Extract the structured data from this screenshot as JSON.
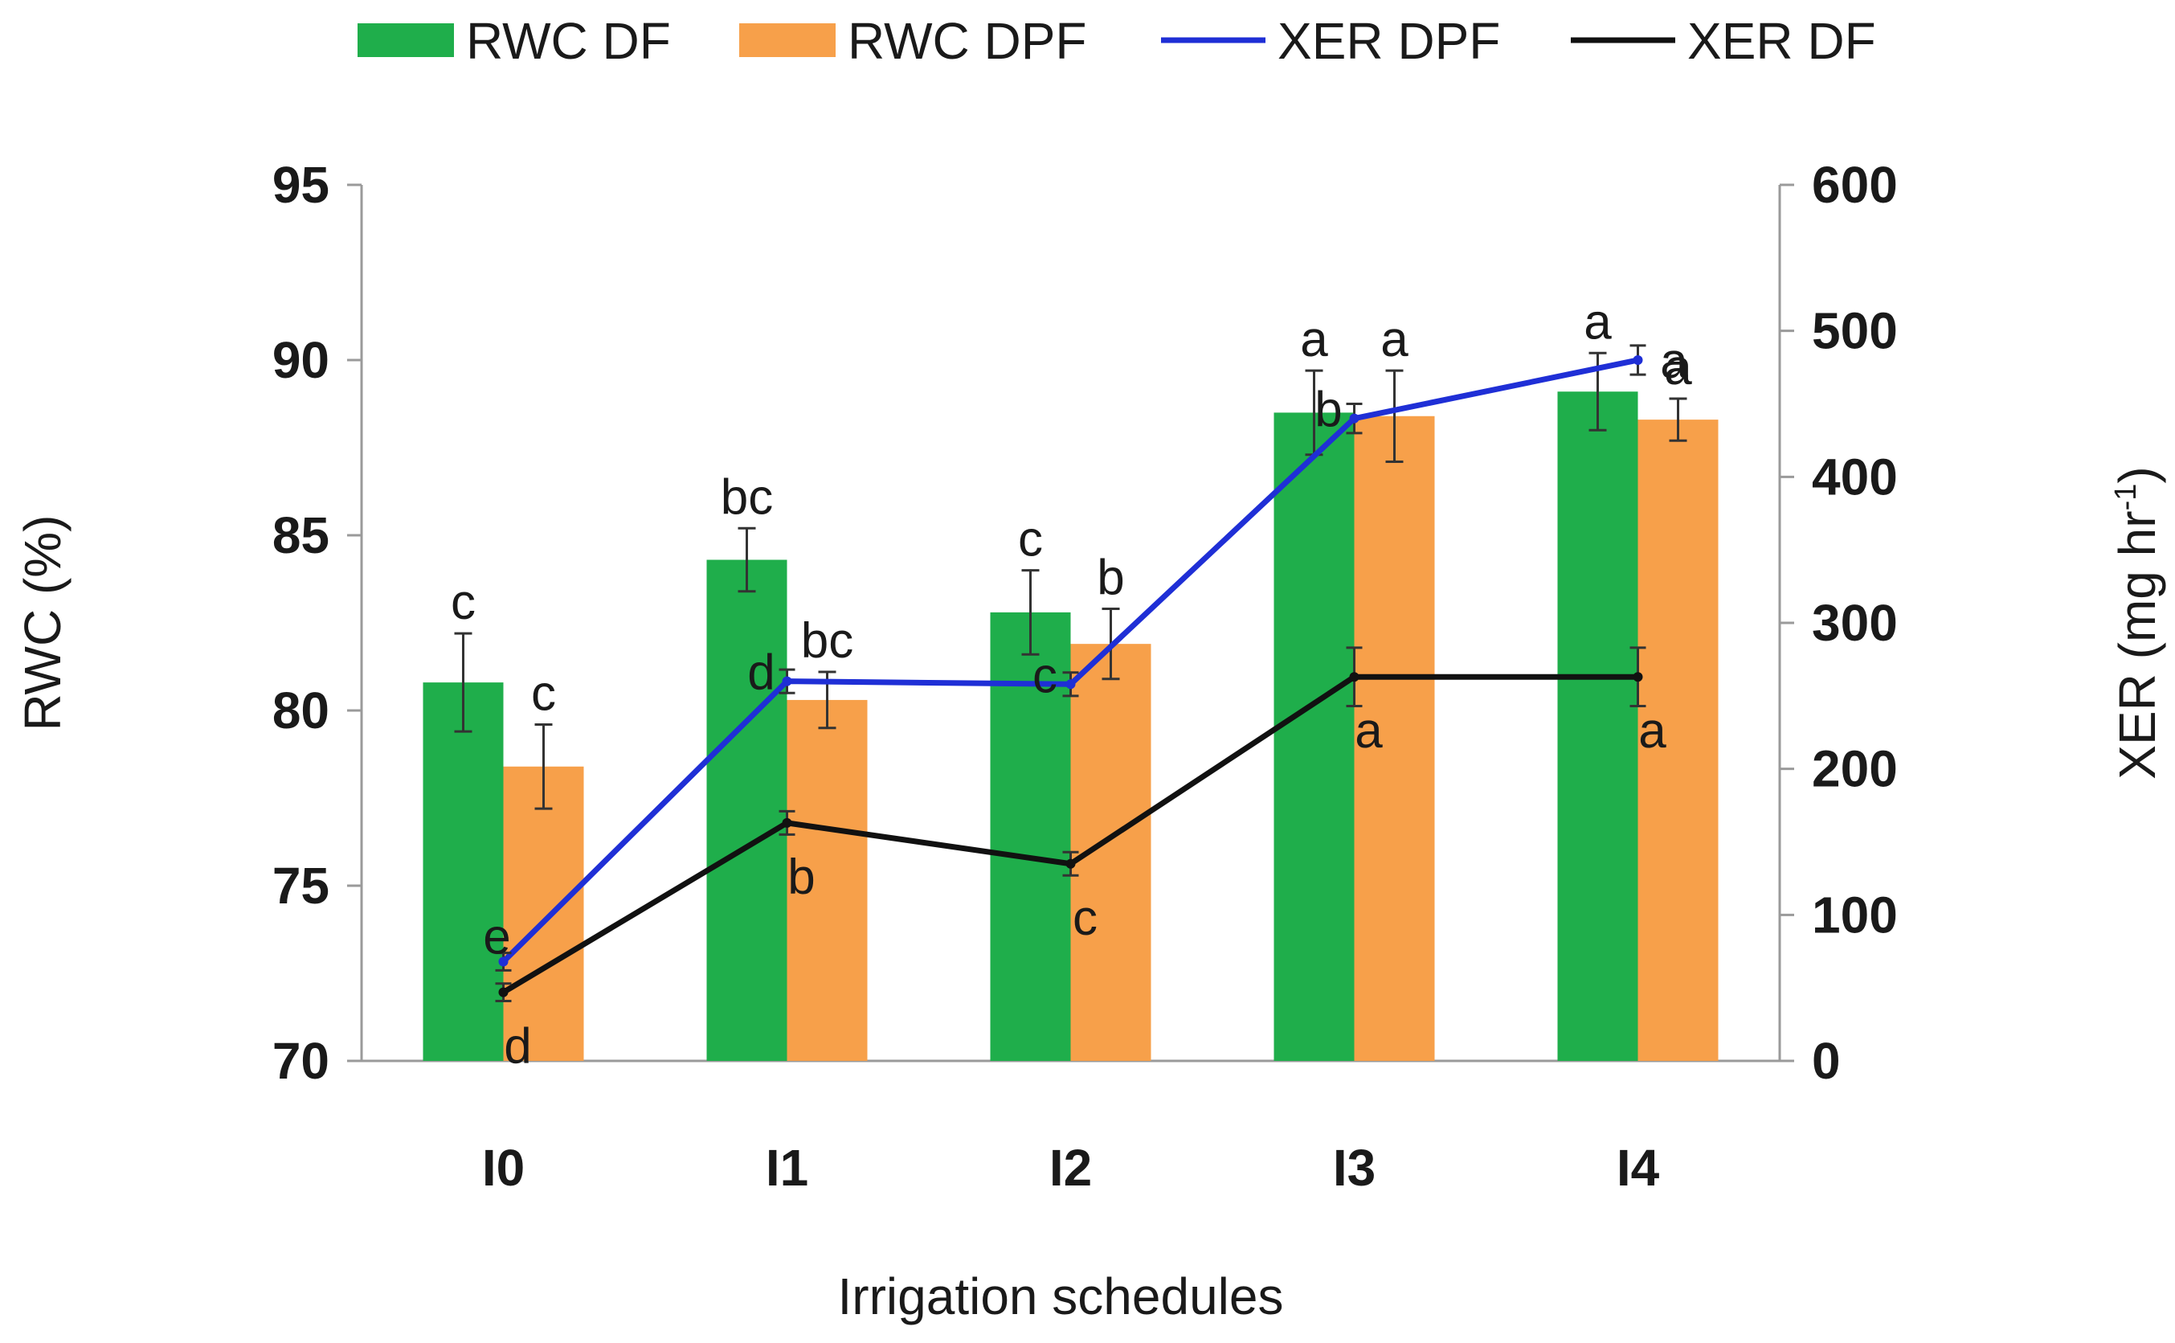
{
  "chart_data": {
    "type": "bar",
    "title": "",
    "xlabel": "Irrigation schedules",
    "ylabel": "RWC (%)",
    "y2label": "XER (mg hr",
    "y2label_sup": "-1",
    "y2label_close": ")",
    "categories": [
      "I0",
      "I1",
      "I2",
      "I3",
      "I4"
    ],
    "ylim": [
      70,
      95
    ],
    "yticks": [
      "70",
      "75",
      "80",
      "85",
      "90",
      "95"
    ],
    "y2lim": [
      0,
      600
    ],
    "y2ticks": [
      "0",
      "100",
      "200",
      "300",
      "400",
      "500",
      "600"
    ],
    "bar_series": [
      {
        "name": "RWC DF",
        "color": "#1fae4b",
        "values": [
          80.8,
          84.3,
          82.8,
          88.5,
          89.1
        ],
        "errors": [
          1.4,
          0.9,
          1.2,
          1.2,
          1.1
        ],
        "letters": [
          "c",
          "bc",
          "c",
          "a",
          "a"
        ]
      },
      {
        "name": "RWC DPF",
        "color": "#f7a04a",
        "values": [
          78.4,
          80.3,
          81.9,
          88.4,
          88.3
        ],
        "errors": [
          1.2,
          0.8,
          1.0,
          1.3,
          0.6
        ],
        "letters": [
          "c",
          "bc",
          "b",
          "a",
          "a"
        ]
      }
    ],
    "line_series": [
      {
        "name": "XER DPF",
        "color": "#1f2fd6",
        "values": [
          68,
          260,
          258,
          440,
          480
        ],
        "errors": [
          6,
          8,
          8,
          10,
          10
        ],
        "letters": [
          "e",
          "d",
          "c",
          "b",
          "a"
        ]
      },
      {
        "name": "XER DF",
        "color": "#111111",
        "values": [
          47,
          163,
          135,
          263,
          263
        ],
        "errors": [
          6,
          8,
          8,
          20,
          20
        ],
        "letters": [
          "d",
          "b",
          "c",
          "a",
          "a"
        ]
      }
    ],
    "legend_order": [
      "RWC DF",
      "RWC DPF",
      "XER DPF",
      "XER DF"
    ],
    "legend_position": "top-center",
    "grid": false
  }
}
